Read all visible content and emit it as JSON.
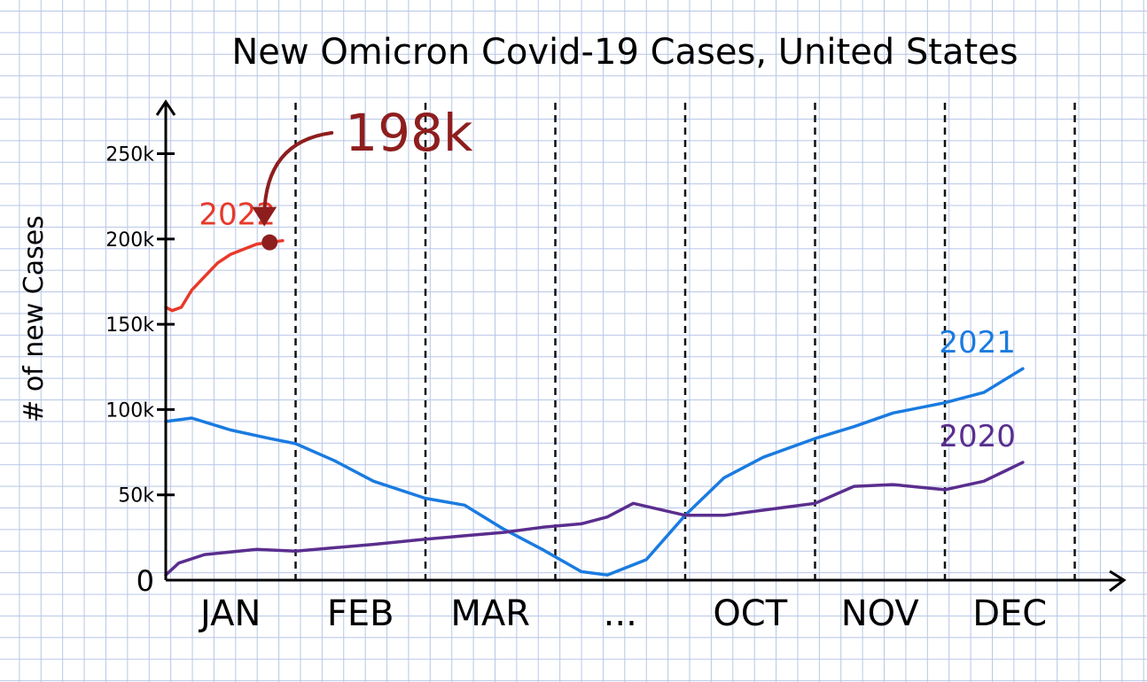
{
  "chart_data": {
    "type": "line",
    "title": "New Omicron Covid-19 Cases, United States",
    "ylabel": "# of new Cases",
    "xlabel": "",
    "ylim": [
      0,
      270000
    ],
    "y_ticks": [
      {
        "value": 0,
        "label": "0"
      },
      {
        "value": 50000,
        "label": "50k"
      },
      {
        "value": 100000,
        "label": "100k"
      },
      {
        "value": 150000,
        "label": "150k"
      },
      {
        "value": 200000,
        "label": "200k"
      },
      {
        "value": 250000,
        "label": "250k"
      }
    ],
    "months": [
      "JAN",
      "FEB",
      "MAR",
      "...",
      "OCT",
      "NOV",
      "DEC"
    ],
    "grid": false,
    "series": [
      {
        "name": "2022",
        "color": "#e8392a",
        "x": [
          0,
          0.05,
          0.12,
          0.2,
          0.3,
          0.4,
          0.5,
          0.6,
          0.7,
          0.8,
          0.9
        ],
        "y": [
          160000,
          158000,
          160000,
          170000,
          178000,
          186000,
          191000,
          194000,
          197000,
          198000,
          199000
        ]
      },
      {
        "name": "2021",
        "color": "#1a7be0",
        "x": [
          0,
          0.2,
          0.5,
          0.8,
          1.0,
          1.3,
          1.6,
          2.0,
          2.3,
          2.6,
          2.9,
          3.2,
          3.4,
          3.7,
          4.0,
          4.3,
          4.6,
          5.0,
          5.3,
          5.6,
          6.0,
          6.3,
          6.6
        ],
        "y": [
          93000,
          95000,
          88000,
          83000,
          80000,
          70000,
          58000,
          48000,
          44000,
          30000,
          18000,
          5000,
          3000,
          12000,
          38000,
          60000,
          72000,
          83000,
          90000,
          98000,
          104000,
          110000,
          124000
        ]
      },
      {
        "name": "2020",
        "color": "#5a2e8e",
        "x": [
          0,
          0.1,
          0.3,
          0.7,
          1.0,
          1.3,
          1.6,
          2.0,
          2.3,
          2.6,
          2.9,
          3.2,
          3.4,
          3.6,
          4.0,
          4.3,
          4.6,
          5.0,
          5.3,
          5.6,
          6.0,
          6.3,
          6.6
        ],
        "y": [
          3000,
          10000,
          15000,
          18000,
          17000,
          19000,
          21000,
          24000,
          26000,
          28000,
          31000,
          33000,
          37000,
          45000,
          38000,
          38000,
          41000,
          45000,
          55000,
          56000,
          53000,
          58000,
          69000
        ]
      }
    ],
    "annotations": [
      {
        "text": "198k",
        "color": "#8e1e1e",
        "points_to": {
          "series": "2022",
          "value": 198000
        }
      }
    ]
  }
}
